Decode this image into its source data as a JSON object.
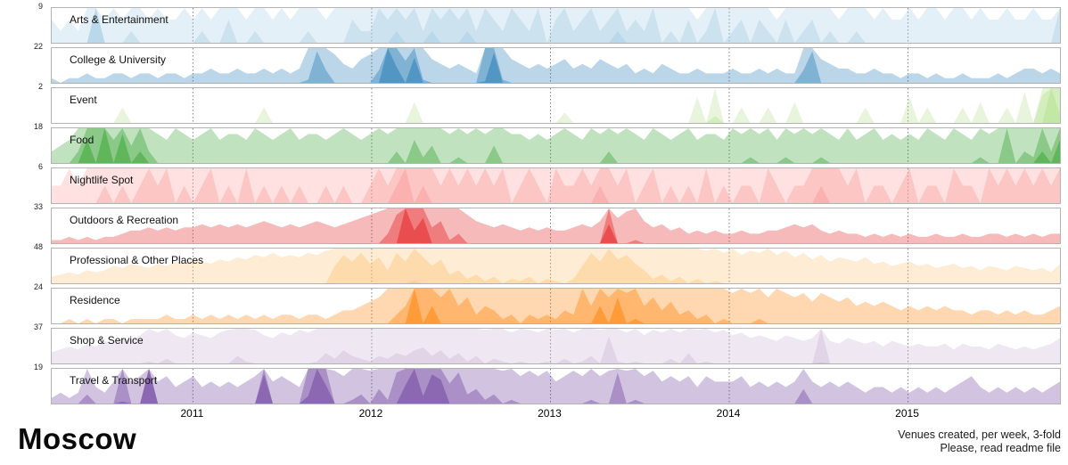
{
  "title": "Moscow",
  "caption": {
    "line1": "Venues created, per week, 3-fold",
    "line2": "Please, read readme file"
  },
  "chart_data": {
    "type": "area",
    "variant": "small-multiples-horizon-3-fold",
    "grid": "vertical-dotted-year-lines",
    "legend": "none",
    "x_ticks": [
      "2011",
      "2012",
      "2013",
      "2014",
      "2015"
    ],
    "x_domain_years": [
      2010.21,
      2015.86
    ],
    "fold_count": 3,
    "fold_opacities": [
      0.3,
      0.38,
      0.48
    ],
    "series": [
      {
        "name": "Arts & Entertainment",
        "max": 9,
        "color": "#a6cee3",
        "values": [
          2,
          1,
          2,
          1,
          3,
          9,
          2,
          3,
          2,
          4,
          3,
          2,
          3,
          2,
          2,
          3,
          2,
          4,
          2,
          3,
          5,
          3,
          2,
          4,
          3,
          2,
          3,
          2,
          3,
          4,
          3,
          2,
          3,
          3,
          5,
          4,
          4,
          6,
          5,
          7,
          5,
          6,
          4,
          7,
          5,
          6,
          5,
          7,
          4,
          6,
          5,
          4,
          6,
          5,
          4,
          6,
          3,
          5,
          6,
          4,
          5,
          6,
          4,
          5,
          7,
          4,
          5,
          4,
          6,
          3,
          4,
          3,
          5,
          2,
          4,
          6,
          3,
          4,
          5,
          3,
          5,
          4,
          2,
          5,
          3,
          4,
          5,
          3,
          4,
          2,
          3,
          4,
          3,
          2,
          3,
          2,
          2,
          3,
          2,
          3,
          3,
          2,
          3,
          3,
          2,
          3,
          2,
          2,
          3,
          2,
          2,
          3,
          2,
          2,
          6
        ]
      },
      {
        "name": "College & University",
        "max": 22,
        "color": "#1f78b4",
        "values": [
          1,
          0,
          1,
          1,
          2,
          1,
          1,
          2,
          2,
          1,
          2,
          2,
          1,
          2,
          2,
          1,
          2,
          2,
          3,
          2,
          2,
          3,
          2,
          2,
          3,
          2,
          3,
          2,
          3,
          8,
          14,
          10,
          6,
          4,
          3,
          5,
          6,
          10,
          22,
          18,
          12,
          20,
          8,
          5,
          4,
          3,
          4,
          3,
          2,
          15,
          21,
          8,
          5,
          4,
          3,
          4,
          3,
          4,
          5,
          3,
          4,
          3,
          5,
          4,
          3,
          4,
          2,
          3,
          2,
          4,
          3,
          2,
          2,
          3,
          2,
          2,
          2,
          3,
          2,
          2,
          3,
          2,
          3,
          2,
          2,
          10,
          14,
          5,
          4,
          3,
          3,
          2,
          2,
          3,
          2,
          2,
          1,
          2,
          2,
          1,
          2,
          1,
          1,
          2,
          1,
          1,
          1,
          2,
          1,
          2,
          3,
          3,
          2,
          3,
          2
        ]
      },
      {
        "name": "Event",
        "max": 2,
        "color": "#b2df8a",
        "values": [
          0,
          0,
          0,
          0,
          0,
          0,
          0,
          0,
          0.3,
          0,
          0,
          0,
          0,
          0,
          0,
          0,
          0,
          0,
          0,
          0,
          0,
          0,
          0,
          0,
          0.3,
          0,
          0,
          0,
          0,
          0,
          0,
          0,
          0,
          0,
          0,
          0,
          0,
          0,
          0,
          0,
          0,
          0.4,
          0,
          0,
          0,
          0,
          0,
          0,
          0,
          0,
          0,
          0,
          0,
          0,
          0,
          0,
          0,
          0,
          0.2,
          0,
          0,
          0,
          0,
          0,
          0,
          0,
          0,
          0,
          0,
          0,
          0,
          0,
          0,
          0.5,
          0,
          0.8,
          0,
          0,
          0.3,
          0,
          0,
          0.3,
          0,
          0,
          0.4,
          0,
          0,
          0,
          0,
          0,
          0,
          0,
          0.3,
          0,
          0,
          0,
          0,
          0.5,
          0,
          0.3,
          0,
          0,
          0,
          0.3,
          0,
          0.4,
          0,
          0,
          0.3,
          0,
          0.6,
          0,
          1.2,
          2,
          1.5
        ]
      },
      {
        "name": "Food",
        "max": 18,
        "color": "#33a02c",
        "values": [
          2,
          3,
          4,
          8,
          16,
          12,
          18,
          10,
          17,
          9,
          14,
          8,
          5,
          4,
          6,
          5,
          4,
          5,
          6,
          4,
          5,
          5,
          4,
          6,
          5,
          4,
          5,
          6,
          4,
          5,
          5,
          4,
          5,
          6,
          5,
          4,
          5,
          6,
          5,
          8,
          6,
          10,
          7,
          9,
          6,
          5,
          7,
          5,
          6,
          5,
          9,
          6,
          5,
          5,
          4,
          5,
          4,
          5,
          6,
          5,
          4,
          6,
          5,
          8,
          5,
          6,
          5,
          4,
          6,
          5,
          4,
          5,
          6,
          4,
          5,
          5,
          4,
          6,
          5,
          7,
          5,
          6,
          4,
          7,
          5,
          6,
          5,
          7,
          5,
          4,
          6,
          4,
          5,
          6,
          4,
          5,
          4,
          5,
          4,
          6,
          5,
          4,
          6,
          5,
          4,
          7,
          5,
          6,
          12,
          6,
          8,
          7,
          14,
          8,
          16
        ]
      },
      {
        "name": "Nightlife Spot",
        "max": 6,
        "color": "#fb9a99",
        "values": [
          1,
          1,
          2,
          1,
          2,
          2,
          3,
          2,
          3,
          2,
          3,
          4,
          3,
          4,
          2,
          3,
          2,
          3,
          4,
          2,
          3,
          2,
          4,
          2,
          3,
          2,
          3,
          2,
          3,
          2,
          2,
          3,
          2,
          3,
          2,
          2,
          3,
          4,
          3,
          5,
          6,
          4,
          5,
          4,
          3,
          4,
          3,
          4,
          3,
          4,
          3,
          4,
          2,
          3,
          4,
          3,
          2,
          4,
          3,
          3,
          4,
          3,
          5,
          4,
          3,
          4,
          2,
          3,
          4,
          2,
          3,
          2,
          3,
          2,
          4,
          2,
          3,
          2,
          3,
          3,
          2,
          4,
          3,
          2,
          3,
          3,
          4,
          5,
          4,
          4,
          3,
          4,
          2,
          3,
          3,
          2,
          3,
          4,
          2,
          3,
          3,
          2,
          4,
          3,
          3,
          2,
          4,
          3,
          4,
          3,
          4,
          3,
          4,
          3,
          4
        ]
      },
      {
        "name": "Outdoors & Recreation",
        "max": 33,
        "color": "#e31a1c",
        "values": [
          1,
          1,
          2,
          1,
          2,
          1,
          2,
          2,
          3,
          4,
          4,
          5,
          4,
          5,
          4,
          5,
          5,
          6,
          5,
          6,
          5,
          6,
          5,
          6,
          7,
          6,
          5,
          6,
          5,
          6,
          7,
          6,
          5,
          6,
          7,
          8,
          9,
          10,
          14,
          20,
          33,
          26,
          30,
          16,
          18,
          12,
          14,
          9,
          7,
          6,
          5,
          6,
          5,
          4,
          5,
          4,
          5,
          4,
          4,
          5,
          6,
          5,
          7,
          28,
          8,
          10,
          12,
          7,
          5,
          6,
          4,
          5,
          3,
          4,
          3,
          4,
          3,
          3,
          4,
          3,
          3,
          4,
          4,
          5,
          6,
          5,
          6,
          4,
          3,
          4,
          3,
          3,
          2,
          3,
          2,
          3,
          2,
          3,
          2,
          2,
          3,
          2,
          2,
          3,
          2,
          2,
          3,
          3,
          2,
          3,
          2,
          3,
          2,
          3,
          3
        ]
      },
      {
        "name": "Professional & Other Places",
        "max": 48,
        "color": "#fdbf6f",
        "values": [
          3,
          4,
          5,
          4,
          6,
          5,
          6,
          8,
          7,
          9,
          8,
          7,
          9,
          8,
          10,
          9,
          11,
          10,
          9,
          11,
          10,
          12,
          11,
          13,
          12,
          14,
          12,
          13,
          12,
          14,
          13,
          15,
          24,
          29,
          26,
          30,
          25,
          28,
          22,
          30,
          26,
          33,
          28,
          24,
          27,
          20,
          22,
          18,
          20,
          17,
          19,
          16,
          18,
          17,
          19,
          16,
          18,
          17,
          16,
          18,
          24,
          30,
          26,
          32,
          27,
          29,
          25,
          22,
          18,
          20,
          17,
          19,
          16,
          18,
          15,
          17,
          14,
          16,
          13,
          15,
          14,
          16,
          13,
          15,
          12,
          14,
          11,
          13,
          10,
          12,
          11,
          10,
          12,
          9,
          10,
          8,
          9,
          10,
          8,
          9,
          7,
          8,
          9,
          7,
          8,
          6,
          8,
          7,
          6,
          8,
          7,
          6,
          7,
          5,
          9
        ]
      },
      {
        "name": "Residence",
        "max": 24,
        "color": "#ff7f00",
        "values": [
          0,
          0,
          1,
          0,
          1,
          0,
          1,
          1,
          0,
          1,
          1,
          1,
          1,
          2,
          1,
          1,
          2,
          1,
          2,
          1,
          2,
          1,
          2,
          1,
          2,
          1,
          2,
          2,
          1,
          2,
          2,
          1,
          2,
          3,
          3,
          4,
          5,
          6,
          8,
          10,
          12,
          24,
          16,
          20,
          14,
          16,
          12,
          14,
          10,
          12,
          11,
          9,
          10,
          8,
          10,
          9,
          10,
          9,
          11,
          10,
          16,
          12,
          20,
          14,
          22,
          15,
          17,
          12,
          14,
          11,
          13,
          10,
          11,
          9,
          10,
          8,
          9,
          7,
          8,
          7,
          9,
          6,
          8,
          7,
          6,
          7,
          5,
          7,
          6,
          5,
          6,
          4,
          5,
          4,
          5,
          4,
          3,
          4,
          3,
          4,
          3,
          4,
          3,
          3,
          2,
          3,
          3,
          2,
          3,
          2,
          3,
          2,
          2,
          3,
          4
        ]
      },
      {
        "name": "Shop & Service",
        "max": 37,
        "color": "#cab2d6",
        "values": [
          4,
          5,
          6,
          5,
          7,
          6,
          8,
          7,
          9,
          8,
          10,
          13,
          11,
          14,
          10,
          9,
          11,
          10,
          9,
          11,
          12,
          15,
          13,
          12,
          10,
          9,
          11,
          10,
          12,
          11,
          13,
          16,
          14,
          17,
          15,
          14,
          13,
          15,
          14,
          16,
          15,
          17,
          18,
          15,
          17,
          14,
          16,
          13,
          15,
          12,
          14,
          13,
          11,
          13,
          12,
          11,
          13,
          12,
          14,
          11,
          13,
          15,
          12,
          22,
          13,
          11,
          13,
          10,
          12,
          11,
          14,
          11,
          16,
          12,
          13,
          11,
          12,
          10,
          11,
          9,
          10,
          9,
          8,
          10,
          9,
          8,
          9,
          25,
          8,
          7,
          9,
          8,
          7,
          8,
          6,
          8,
          7,
          6,
          7,
          6,
          6,
          7,
          5,
          7,
          6,
          6,
          5,
          7,
          6,
          5,
          6,
          5,
          6,
          7,
          9
        ]
      },
      {
        "name": "Travel & Transport",
        "max": 19,
        "color": "#6a3d9a",
        "values": [
          1,
          2,
          1,
          2,
          8,
          3,
          2,
          4,
          13,
          4,
          5,
          19,
          4,
          5,
          3,
          4,
          5,
          3,
          4,
          3,
          4,
          3,
          4,
          5,
          18,
          4,
          5,
          4,
          3,
          14,
          19,
          16,
          6,
          5,
          7,
          8,
          6,
          9,
          7,
          12,
          16,
          19,
          14,
          18,
          17,
          10,
          12,
          8,
          9,
          7,
          8,
          6,
          7,
          5,
          6,
          5,
          6,
          4,
          5,
          6,
          5,
          7,
          5,
          6,
          12,
          6,
          7,
          5,
          6,
          4,
          5,
          4,
          5,
          3,
          5,
          4,
          4,
          4,
          5,
          3,
          4,
          3,
          4,
          3,
          4,
          9,
          4,
          3,
          4,
          3,
          4,
          3,
          2,
          3,
          3,
          2,
          3,
          2,
          3,
          2,
          3,
          2,
          3,
          4,
          5,
          3,
          2,
          3,
          2,
          3,
          2,
          3,
          2,
          3,
          4
        ]
      }
    ]
  }
}
